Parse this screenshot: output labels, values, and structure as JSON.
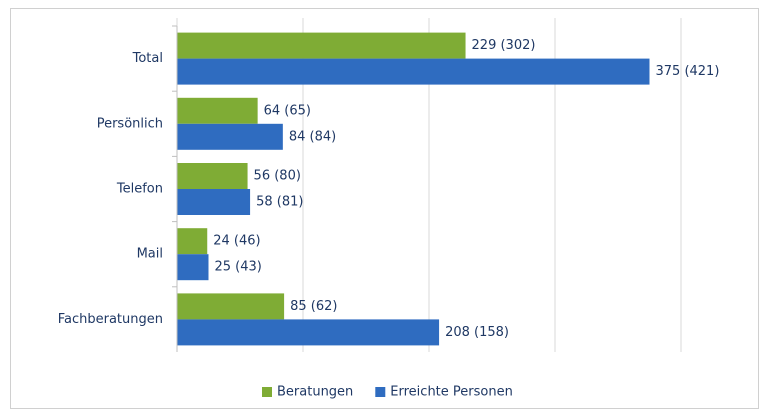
{
  "chart_data": {
    "type": "barh",
    "categories": [
      "Total",
      "Persönlich",
      "Telefon",
      "Mail",
      "Fachberatungen"
    ],
    "series": [
      {
        "name": "Beratungen",
        "color": "#7fac35",
        "values": [
          229,
          64,
          56,
          24,
          85
        ],
        "value_labels": [
          "229 (302)",
          "64 (65)",
          "56 (80)",
          "24 (46)",
          "85 (62)"
        ]
      },
      {
        "name": "Erreichte Personen",
        "color": "#2f6cc0",
        "values": [
          375,
          84,
          58,
          25,
          208
        ],
        "value_labels": [
          "375 (421)",
          "84 (84)",
          "58 (81)",
          "25 (43)",
          "208 (158)"
        ]
      }
    ],
    "xlim": [
      0,
      400
    ],
    "xticks": [
      0,
      100,
      200,
      300,
      400
    ],
    "grid": true,
    "legend": "bottom"
  }
}
